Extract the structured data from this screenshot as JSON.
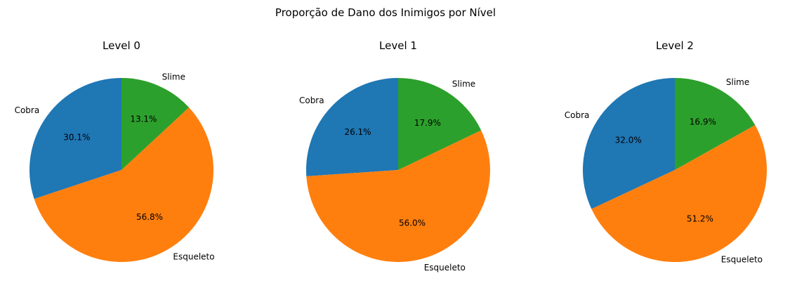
{
  "figure": {
    "title": "Proporção de Dano dos Inimigos por Nível"
  },
  "chart_data": [
    {
      "type": "pie",
      "title": "Level 0",
      "labels": [
        "Cobra",
        "Esqueleto",
        "Slime"
      ],
      "values": [
        30.1,
        56.8,
        13.1
      ],
      "value_labels": [
        "30.1%",
        "56.8%",
        "13.1%"
      ],
      "colors": [
        "#1f77b4",
        "#ff7f0e",
        "#2ca02c"
      ],
      "start_angle": 90,
      "direction": "counterclockwise"
    },
    {
      "type": "pie",
      "title": "Level 1",
      "labels": [
        "Cobra",
        "Esqueleto",
        "Slime"
      ],
      "values": [
        26.1,
        56.0,
        17.9
      ],
      "value_labels": [
        "26.1%",
        "56.0%",
        "17.9%"
      ],
      "colors": [
        "#1f77b4",
        "#ff7f0e",
        "#2ca02c"
      ],
      "start_angle": 90,
      "direction": "counterclockwise"
    },
    {
      "type": "pie",
      "title": "Level 2",
      "labels": [
        "Cobra",
        "Esqueleto",
        "Slime"
      ],
      "values": [
        32.0,
        51.2,
        16.9
      ],
      "value_labels": [
        "32.0%",
        "51.2%",
        "16.9%"
      ],
      "colors": [
        "#1f77b4",
        "#ff7f0e",
        "#2ca02c"
      ],
      "start_angle": 90,
      "direction": "counterclockwise"
    }
  ]
}
